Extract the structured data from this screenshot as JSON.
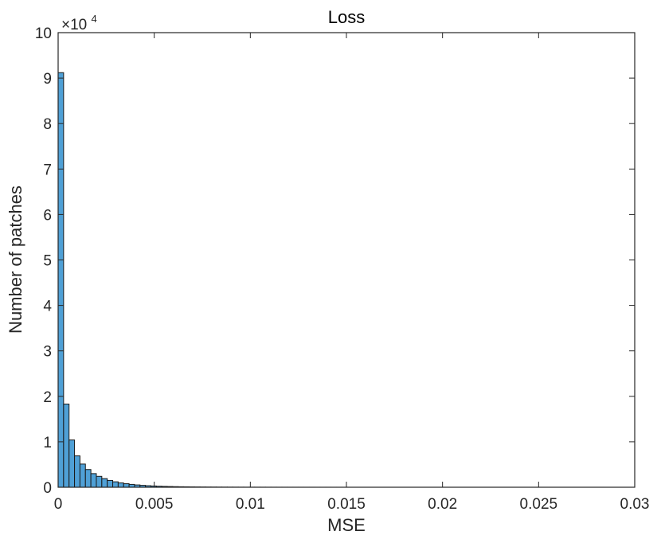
{
  "chart_data": {
    "type": "bar",
    "subtype": "histogram",
    "title": "Loss",
    "xlabel": "MSE",
    "ylabel": "Number of patches",
    "y_multiplier_label": "×10",
    "y_multiplier_exponent": "4",
    "xlim": [
      0,
      0.03
    ],
    "ylim": [
      0,
      100000
    ],
    "x_ticks": [
      0,
      0.005,
      0.01,
      0.015,
      0.02,
      0.025,
      0.03
    ],
    "x_tick_labels": [
      "0",
      "0.005",
      "0.01",
      "0.015",
      "0.02",
      "0.025",
      "0.03"
    ],
    "y_ticks": [
      0,
      10000,
      20000,
      30000,
      40000,
      50000,
      60000,
      70000,
      80000,
      90000,
      100000
    ],
    "y_tick_labels": [
      "0",
      "1",
      "2",
      "3",
      "4",
      "5",
      "6",
      "7",
      "8",
      "9",
      "10"
    ],
    "bin_width": 0.000284,
    "bin_start": 0,
    "values": [
      91200,
      18300,
      10400,
      6900,
      5100,
      3900,
      3000,
      2400,
      1900,
      1500,
      1200,
      950,
      780,
      630,
      510,
      420,
      340,
      280,
      230,
      190,
      160,
      130,
      110,
      95,
      80,
      68,
      58,
      50,
      43,
      37,
      32,
      28,
      24,
      21,
      18,
      16,
      14,
      12,
      10,
      9,
      8,
      7,
      6,
      5,
      5,
      4,
      4,
      3,
      3,
      3,
      2,
      2,
      2,
      2,
      1,
      1,
      1,
      1,
      1,
      1,
      1,
      1,
      1,
      1,
      1,
      1,
      1,
      1,
      1,
      1,
      1,
      1,
      1,
      1,
      1,
      1,
      1,
      1,
      1,
      1,
      1,
      1,
      1,
      1,
      1,
      1,
      1,
      1,
      1,
      1,
      1,
      1,
      1,
      1,
      1,
      1,
      1,
      1,
      1,
      1
    ],
    "bar_color": "#4fa0d6",
    "grid": false
  }
}
